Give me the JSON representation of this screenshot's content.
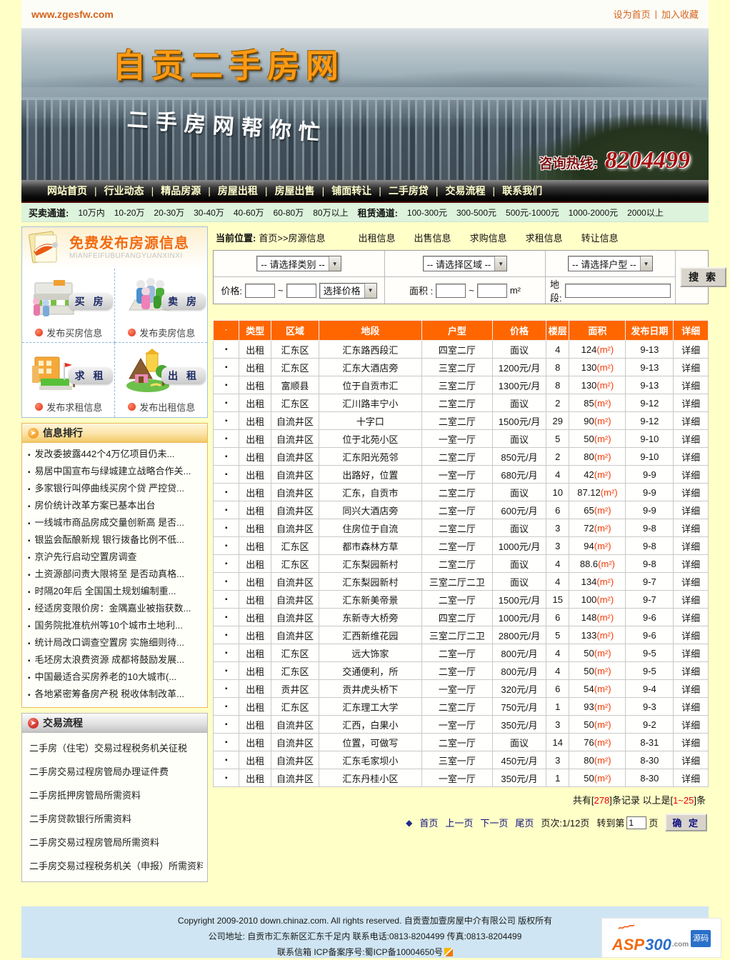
{
  "topbar": {
    "url": "www.zgesfw.com",
    "set_home": "设为首页",
    "sep": "|",
    "add_fav": "加入收藏"
  },
  "banner": {
    "title": "自贡二手房网",
    "slogan": "二手房网帮你忙",
    "hotline_label": "咨询热线:",
    "hotline_number": "8204499"
  },
  "nav": {
    "sep": "|",
    "items": [
      "网站首页",
      "行业动态",
      "精品房源",
      "房屋出租",
      "房屋出售",
      "铺面转让",
      "二手房贷",
      "交易流程",
      "联系我们"
    ]
  },
  "channels": {
    "buy_label": "买卖通道:",
    "buy_items": [
      "10万内",
      "10-20万",
      "20-30万",
      "30-40万",
      "40-60万",
      "60-80万",
      "80万以上"
    ],
    "rent_label": "租赁通道:",
    "rent_items": [
      "100-300元",
      "300-500元",
      "500元-1000元",
      "1000-2000元",
      "2000以上"
    ]
  },
  "sidebar": {
    "publish": {
      "title": "免费发布房源信息",
      "pinyin": "MIANFEIFUBUFANGYUANXINXI",
      "items": [
        {
          "label": "买 房",
          "caption": "发布买房信息"
        },
        {
          "label": "卖 房",
          "caption": "发布卖房信息"
        },
        {
          "label": "求 租",
          "caption": "发布求租信息"
        },
        {
          "label": "出 租",
          "caption": "发布出租信息"
        }
      ]
    },
    "ranking": {
      "title": "信息排行",
      "items": [
        "发改委披露442个4万亿项目仍未...",
        "易居中国宣布与绿城建立战略合作关...",
        "多家银行叫停曲线买房个贷 严控贷...",
        "房价统计改革方案已基本出台",
        "一线城市商品房成交量创新高 是否...",
        "银监会酝酿新规 银行拨备比例不低...",
        "京沪先行启动空置房调查",
        "土资源部问责大限将至 是否动真格...",
        "时隔20年后 全国国土规划编制重...",
        "经适房变限价房：金隅嘉业被指获数...",
        "国务院批准杭州等10个城市土地利...",
        "统计局改口调查空置房 实施细则待...",
        "毛坯房太浪费资源 成都将鼓励发展...",
        "中国最适合买房养老的10大城市(...",
        "各地紧密筹备房产税 税收体制改革..."
      ]
    },
    "process": {
      "title": "交易流程",
      "items": [
        "二手房（住宅）交易过程税务机关征税",
        "二手房交易过程房管局办理证件费",
        "二手房抵押房管局所需资料",
        "二手房贷款银行所需资料",
        "二手房交易过程房管局所需资料",
        "二手房交易过程税务机关（申报）所需资料"
      ]
    }
  },
  "main": {
    "breadcrumb": {
      "label": "当前位置:",
      "path": "首页>>房源信息"
    },
    "category_links": [
      "出租信息",
      "出售信息",
      "求购信息",
      "求租信息",
      "转让信息"
    ],
    "search": {
      "select_category": "-- 请选择类别 --",
      "select_region": "-- 请选择区域 --",
      "select_layout": "-- 请选择户型 --",
      "price_label": "价格:",
      "tilde": "~",
      "select_price": "选择价格",
      "area_label": "面积 :",
      "area_unit": "m²",
      "location_label": "地段:",
      "search_button": "搜 索"
    },
    "table": {
      "headers": [
        "·",
        "类型",
        "区域",
        "地段",
        "户型",
        "价格",
        "楼层",
        "面积",
        "发布日期",
        "详细"
      ],
      "bullet": "▪",
      "area_unit": "(m²)",
      "detail_label": "详细",
      "rows": [
        {
          "type": "出租",
          "region": "汇东区",
          "location": "汇东路西段汇",
          "layout": "四室二厅",
          "price": "面议",
          "floor": "4",
          "area": "124",
          "date": "9-13"
        },
        {
          "type": "出租",
          "region": "汇东区",
          "location": "汇东大酒店旁",
          "layout": "三室二厅",
          "price": "1200元/月",
          "floor": "8",
          "area": "130",
          "date": "9-13"
        },
        {
          "type": "出租",
          "region": "富顺县",
          "location": "位于自贡市汇",
          "layout": "三室二厅",
          "price": "1300元/月",
          "floor": "8",
          "area": "130",
          "date": "9-13"
        },
        {
          "type": "出租",
          "region": "汇东区",
          "location": "汇川路丰宁小",
          "layout": "二室二厅",
          "price": "面议",
          "floor": "2",
          "area": "85",
          "date": "9-12"
        },
        {
          "type": "出租",
          "region": "自流井区",
          "location": "十字口",
          "layout": "二室二厅",
          "price": "1500元/月",
          "floor": "29",
          "area": "90",
          "date": "9-12"
        },
        {
          "type": "出租",
          "region": "自流井区",
          "location": "位于北苑小区",
          "layout": "一室一厅",
          "price": "面议",
          "floor": "5",
          "area": "50",
          "date": "9-10"
        },
        {
          "type": "出租",
          "region": "自流井区",
          "location": "汇东阳光苑邻",
          "layout": "二室二厅",
          "price": "850元/月",
          "floor": "2",
          "area": "80",
          "date": "9-10"
        },
        {
          "type": "出租",
          "region": "自流井区",
          "location": "出路好，位置",
          "layout": "一室一厅",
          "price": "680元/月",
          "floor": "4",
          "area": "42",
          "date": "9-9"
        },
        {
          "type": "出租",
          "region": "自流井区",
          "location": "汇东，自贡市",
          "layout": "二室二厅",
          "price": "面议",
          "floor": "10",
          "area": "87.12",
          "date": "9-9"
        },
        {
          "type": "出租",
          "region": "自流井区",
          "location": "同兴大酒店旁",
          "layout": "二室一厅",
          "price": "600元/月",
          "floor": "6",
          "area": "65",
          "date": "9-9"
        },
        {
          "type": "出租",
          "region": "自流井区",
          "location": "住房位于自流",
          "layout": "二室二厅",
          "price": "面议",
          "floor": "3",
          "area": "72",
          "date": "9-8"
        },
        {
          "type": "出租",
          "region": "汇东区",
          "location": "都市森林方草",
          "layout": "二室一厅",
          "price": "1000元/月",
          "floor": "3",
          "area": "94",
          "date": "9-8"
        },
        {
          "type": "出租",
          "region": "汇东区",
          "location": "汇东梨园新村",
          "layout": "二室二厅",
          "price": "面议",
          "floor": "4",
          "area": "88.6",
          "date": "9-8"
        },
        {
          "type": "出租",
          "region": "自流井区",
          "location": "汇东梨园新村",
          "layout": "三室二厅二卫",
          "price": "面议",
          "floor": "4",
          "area": "134",
          "date": "9-7"
        },
        {
          "type": "出租",
          "region": "自流井区",
          "location": "汇东新美帝景",
          "layout": "二室一厅",
          "price": "1500元/月",
          "floor": "15",
          "area": "100",
          "date": "9-7"
        },
        {
          "type": "出租",
          "region": "自流井区",
          "location": "东新寺大桥旁",
          "layout": "四室二厅",
          "price": "1000元/月",
          "floor": "6",
          "area": "148",
          "date": "9-6"
        },
        {
          "type": "出租",
          "region": "自流井区",
          "location": "汇西新维花园",
          "layout": "三室二厅二卫",
          "price": "2800元/月",
          "floor": "5",
          "area": "133",
          "date": "9-6"
        },
        {
          "type": "出租",
          "region": "汇东区",
          "location": "远大饰家",
          "layout": "二室一厅",
          "price": "800元/月",
          "floor": "4",
          "area": "50",
          "date": "9-5"
        },
        {
          "type": "出租",
          "region": "汇东区",
          "location": "交通便利，所",
          "layout": "二室一厅",
          "price": "800元/月",
          "floor": "4",
          "area": "50",
          "date": "9-5"
        },
        {
          "type": "出租",
          "region": "贡井区",
          "location": "贡井虎头桥下",
          "layout": "一室一厅",
          "price": "320元/月",
          "floor": "6",
          "area": "54",
          "date": "9-4"
        },
        {
          "type": "出租",
          "region": "汇东区",
          "location": "汇东理工大学",
          "layout": "二室二厅",
          "price": "750元/月",
          "floor": "1",
          "area": "93",
          "date": "9-3"
        },
        {
          "type": "出租",
          "region": "自流井区",
          "location": "汇西，白果小",
          "layout": "一室一厅",
          "price": "350元/月",
          "floor": "3",
          "area": "50",
          "date": "9-2"
        },
        {
          "type": "出租",
          "region": "自流井区",
          "location": "位置，可做写",
          "layout": "二室一厅",
          "price": "面议",
          "floor": "14",
          "area": "76",
          "date": "8-31"
        },
        {
          "type": "出租",
          "region": "自流井区",
          "location": "汇东毛家坝小",
          "layout": "三室一厅",
          "price": "450元/月",
          "floor": "3",
          "area": "80",
          "date": "8-30"
        },
        {
          "type": "出租",
          "region": "自流井区",
          "location": "汇东丹桂小区",
          "layout": "一室一厅",
          "price": "350元/月",
          "floor": "1",
          "area": "50",
          "date": "8-30"
        }
      ]
    },
    "summary": {
      "p1": "共有[",
      "count": "278",
      "p2": "]条记录 以上是[",
      "range": "1~25",
      "p3": "]条"
    },
    "pagination": {
      "diamond": "◆",
      "first": "首页",
      "prev": "上一页",
      "next": "下一页",
      "last": "尾页",
      "page_info": "页次:1/12页",
      "goto_prefix": "转到第",
      "goto_value": "1",
      "goto_suffix": "页",
      "confirm": "确 定"
    }
  },
  "footer": {
    "line1": "Copyright 2009-2010 down.chinaz.com. All rights reserved. 自贡壹加壹房屋中介有限公司 版权所有",
    "line2": "公司地址: 自贡市汇东新区汇东千足内 联系电话:0813-8204499 传真:0813-8204499",
    "line3_mail": "联系信箱",
    "line3_icp": "ICP备案序号:蜀ICP备10004650号",
    "logo": {
      "asp": "ASP",
      "num": "300",
      "com": ".com",
      "tag": "源码",
      "flame": "~~~"
    }
  },
  "colors": {
    "accent_orange": "#ff6600",
    "nav_text": "#ffffcc",
    "channel_bg": "#ddf3dc",
    "hotline_red": "#a40f0f",
    "link_navy": "#10107e",
    "unit_red": "#f43c0a",
    "footer_blue": "#cfe5f3",
    "page_bg": "#ffffc8"
  }
}
